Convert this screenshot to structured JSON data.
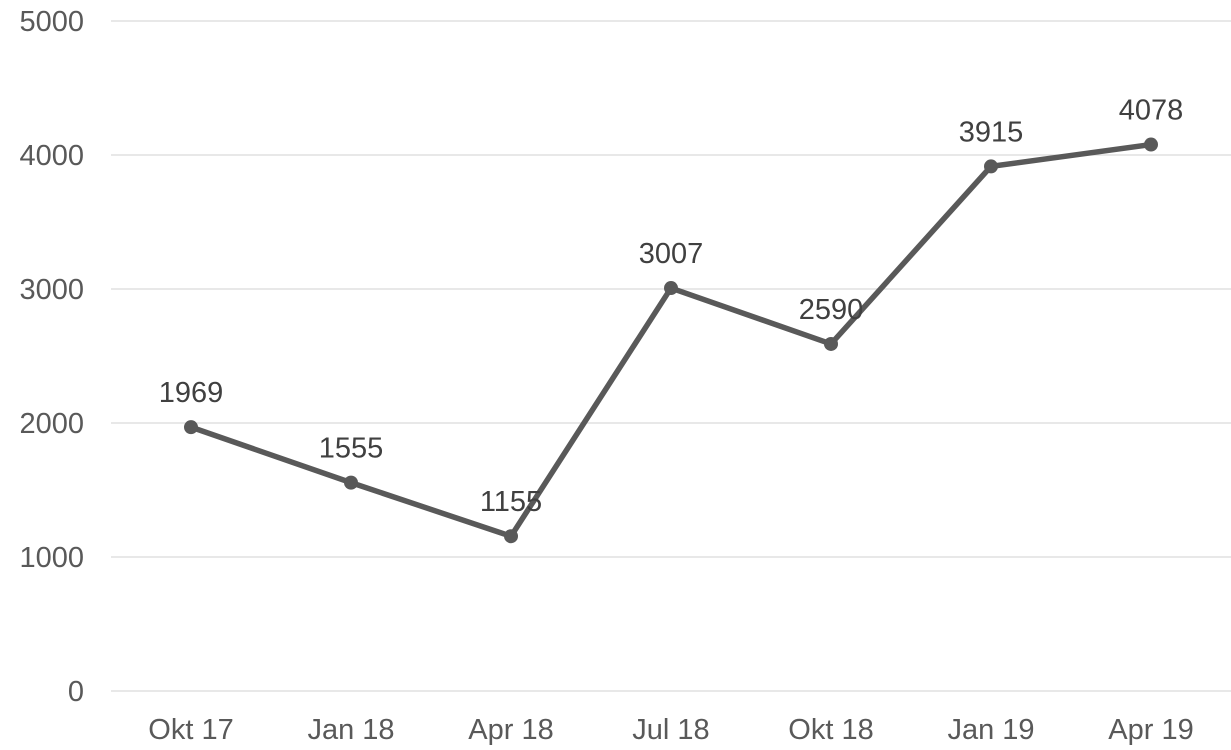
{
  "chart_data": {
    "type": "line",
    "title": "",
    "xlabel": "",
    "ylabel": "",
    "categories": [
      "Okt 17",
      "Jan 18",
      "Apr 18",
      "Jul 18",
      "Okt 18",
      "Jan 19",
      "Apr 19"
    ],
    "series": [
      {
        "values": [
          1969,
          1555,
          1155,
          3007,
          2590,
          3915,
          4078
        ],
        "color": "#595959"
      }
    ],
    "ylim": [
      0,
      5000
    ],
    "yticks": [
      0,
      1000,
      2000,
      3000,
      4000,
      5000
    ],
    "grid": true,
    "legend": "none",
    "data_labels": true,
    "gridline_color": "#d9d9d9",
    "axis_text_color": "#595959",
    "data_label_color": "#404040"
  }
}
